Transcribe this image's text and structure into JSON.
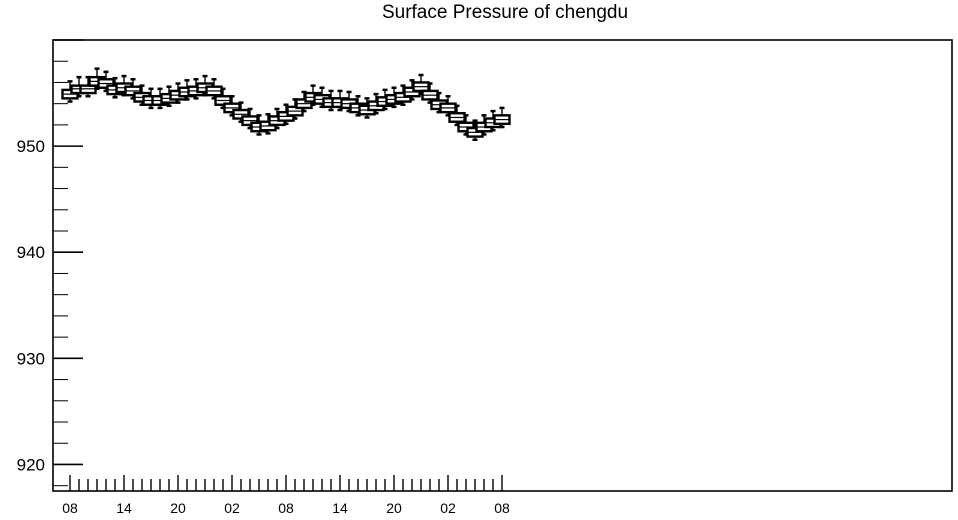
{
  "chart_data": {
    "type": "box",
    "title": "Surface Pressure of chengdu",
    "xlabel": "",
    "ylabel": "",
    "ylim": [
      917.5,
      960
    ],
    "yticks": [
      920,
      930,
      940,
      950
    ],
    "xtick_labels": [
      "08",
      "14",
      "20",
      "02",
      "08",
      "14",
      "20",
      "02",
      "08"
    ],
    "grid": false,
    "series": [
      {
        "values": [
          {
            "x": 0,
            "median": 954.9,
            "q1": 954.5,
            "q3": 955.3,
            "min": 954.2,
            "max": 956.1
          },
          {
            "x": 1,
            "median": 955.4,
            "q1": 955.0,
            "q3": 955.7,
            "min": 954.7,
            "max": 956.5
          },
          {
            "x": 2,
            "median": 955.4,
            "q1": 955.0,
            "q3": 955.7,
            "min": 954.7,
            "max": 956.5
          },
          {
            "x": 3,
            "median": 956.1,
            "q1": 955.7,
            "q3": 956.5,
            "min": 955.4,
            "max": 957.3
          },
          {
            "x": 4,
            "median": 955.9,
            "q1": 955.5,
            "q3": 956.3,
            "min": 955.2,
            "max": 957.0
          },
          {
            "x": 5,
            "median": 955.3,
            "q1": 954.9,
            "q3": 955.7,
            "min": 954.6,
            "max": 956.4
          },
          {
            "x": 6,
            "median": 955.5,
            "q1": 955.1,
            "q3": 955.9,
            "min": 954.8,
            "max": 956.6
          },
          {
            "x": 7,
            "median": 955.2,
            "q1": 954.8,
            "q3": 955.6,
            "min": 954.5,
            "max": 956.3
          },
          {
            "x": 8,
            "median": 954.6,
            "q1": 954.2,
            "q3": 955.0,
            "min": 953.9,
            "max": 955.7
          },
          {
            "x": 9,
            "median": 954.3,
            "q1": 953.9,
            "q3": 954.7,
            "min": 953.6,
            "max": 955.4
          },
          {
            "x": 10,
            "median": 954.3,
            "q1": 953.9,
            "q3": 954.7,
            "min": 953.6,
            "max": 955.4
          },
          {
            "x": 11,
            "median": 954.5,
            "q1": 954.1,
            "q3": 954.9,
            "min": 953.8,
            "max": 955.6
          },
          {
            "x": 12,
            "median": 954.8,
            "q1": 954.4,
            "q3": 955.2,
            "min": 954.1,
            "max": 955.9
          },
          {
            "x": 13,
            "median": 955.1,
            "q1": 954.7,
            "q3": 955.5,
            "min": 954.4,
            "max": 956.2
          },
          {
            "x": 14,
            "median": 955.2,
            "q1": 954.8,
            "q3": 955.6,
            "min": 954.5,
            "max": 956.3
          },
          {
            "x": 15,
            "median": 955.5,
            "q1": 955.1,
            "q3": 955.9,
            "min": 954.8,
            "max": 956.6
          },
          {
            "x": 16,
            "median": 955.2,
            "q1": 954.8,
            "q3": 955.6,
            "min": 954.5,
            "max": 956.3
          },
          {
            "x": 17,
            "median": 954.3,
            "q1": 953.9,
            "q3": 954.7,
            "min": 953.6,
            "max": 955.4
          },
          {
            "x": 18,
            "median": 953.6,
            "q1": 953.2,
            "q3": 954.0,
            "min": 952.9,
            "max": 954.7
          },
          {
            "x": 19,
            "median": 953.0,
            "q1": 952.6,
            "q3": 953.4,
            "min": 952.3,
            "max": 954.1
          },
          {
            "x": 20,
            "median": 952.4,
            "q1": 952.0,
            "q3": 952.8,
            "min": 951.7,
            "max": 953.5
          },
          {
            "x": 21,
            "median": 951.8,
            "q1": 951.4,
            "q3": 952.2,
            "min": 951.1,
            "max": 952.9
          },
          {
            "x": 22,
            "median": 951.9,
            "q1": 951.5,
            "q3": 952.3,
            "min": 951.2,
            "max": 953.0
          },
          {
            "x": 23,
            "median": 952.4,
            "q1": 952.0,
            "q3": 952.8,
            "min": 951.7,
            "max": 953.5
          },
          {
            "x": 24,
            "median": 952.8,
            "q1": 952.4,
            "q3": 953.2,
            "min": 952.1,
            "max": 953.9
          },
          {
            "x": 25,
            "median": 953.3,
            "q1": 952.9,
            "q3": 953.7,
            "min": 952.6,
            "max": 954.4
          },
          {
            "x": 26,
            "median": 954.0,
            "q1": 953.6,
            "q3": 954.4,
            "min": 953.3,
            "max": 955.1
          },
          {
            "x": 27,
            "median": 954.6,
            "q1": 954.2,
            "q3": 955.0,
            "min": 953.9,
            "max": 955.7
          },
          {
            "x": 28,
            "median": 954.4,
            "q1": 954.0,
            "q3": 954.8,
            "min": 953.7,
            "max": 955.5
          },
          {
            "x": 29,
            "median": 954.1,
            "q1": 953.7,
            "q3": 954.5,
            "min": 953.4,
            "max": 955.2
          },
          {
            "x": 30,
            "median": 954.1,
            "q1": 953.7,
            "q3": 954.5,
            "min": 953.4,
            "max": 955.2
          },
          {
            "x": 31,
            "median": 954.0,
            "q1": 953.6,
            "q3": 954.4,
            "min": 953.3,
            "max": 955.1
          },
          {
            "x": 32,
            "median": 953.6,
            "q1": 953.2,
            "q3": 954.0,
            "min": 952.9,
            "max": 954.7
          },
          {
            "x": 33,
            "median": 953.4,
            "q1": 953.0,
            "q3": 953.8,
            "min": 952.7,
            "max": 954.5
          },
          {
            "x": 34,
            "median": 953.8,
            "q1": 953.4,
            "q3": 954.2,
            "min": 953.1,
            "max": 954.9
          },
          {
            "x": 35,
            "median": 954.2,
            "q1": 953.8,
            "q3": 954.6,
            "min": 953.5,
            "max": 955.3
          },
          {
            "x": 36,
            "median": 954.4,
            "q1": 954.0,
            "q3": 954.8,
            "min": 953.7,
            "max": 955.5
          },
          {
            "x": 37,
            "median": 954.6,
            "q1": 954.2,
            "q3": 955.0,
            "min": 953.9,
            "max": 955.7
          },
          {
            "x": 38,
            "median": 955.1,
            "q1": 954.7,
            "q3": 955.5,
            "min": 954.4,
            "max": 956.2
          },
          {
            "x": 39,
            "median": 955.6,
            "q1": 955.2,
            "q3": 956.0,
            "min": 954.9,
            "max": 956.7
          },
          {
            "x": 40,
            "median": 954.8,
            "q1": 954.4,
            "q3": 955.2,
            "min": 954.1,
            "max": 955.9
          },
          {
            "x": 41,
            "median": 953.9,
            "q1": 953.5,
            "q3": 954.3,
            "min": 953.2,
            "max": 955.0
          },
          {
            "x": 42,
            "median": 953.6,
            "q1": 953.2,
            "q3": 954.0,
            "min": 952.9,
            "max": 954.7
          },
          {
            "x": 43,
            "median": 952.7,
            "q1": 952.3,
            "q3": 953.1,
            "min": 952.0,
            "max": 953.8
          },
          {
            "x": 44,
            "median": 951.8,
            "q1": 951.4,
            "q3": 952.2,
            "min": 951.1,
            "max": 952.9
          },
          {
            "x": 45,
            "median": 951.3,
            "q1": 950.9,
            "q3": 951.7,
            "min": 950.6,
            "max": 952.4
          },
          {
            "x": 46,
            "median": 951.8,
            "q1": 951.4,
            "q3": 952.2,
            "min": 951.1,
            "max": 952.9
          },
          {
            "x": 47,
            "median": 952.2,
            "q1": 951.8,
            "q3": 952.6,
            "min": 951.5,
            "max": 953.3
          },
          {
            "x": 48,
            "median": 952.5,
            "q1": 952.1,
            "q3": 952.9,
            "min": 951.8,
            "max": 953.6
          }
        ]
      }
    ]
  }
}
